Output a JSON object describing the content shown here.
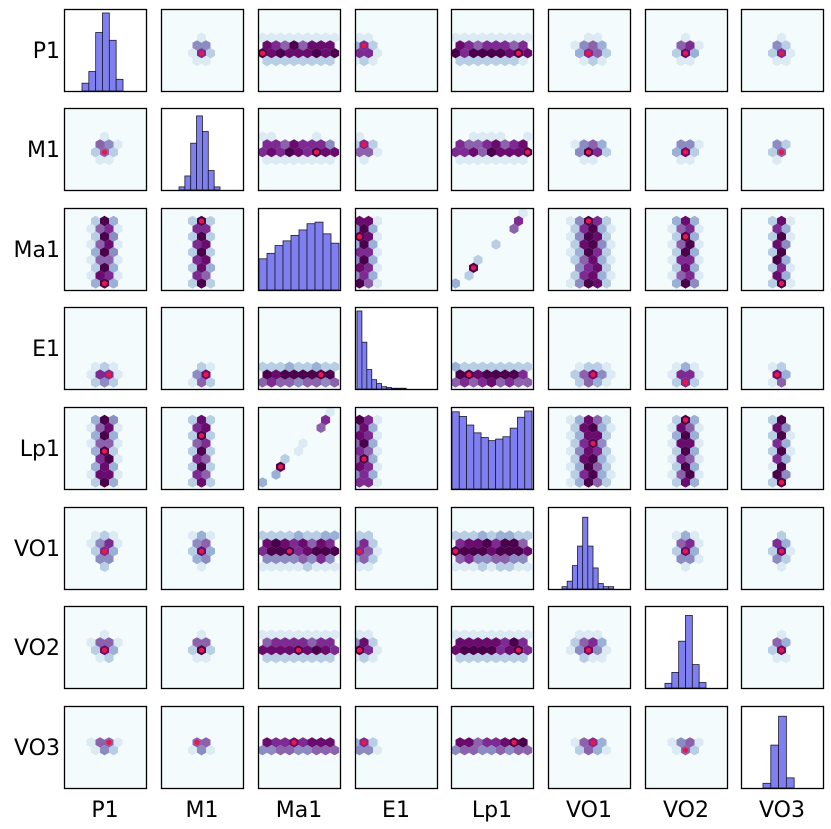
{
  "chart_data": {
    "type": "pairplot",
    "variables": [
      "P1",
      "M1",
      "Ma1",
      "E1",
      "Lp1",
      "VO1",
      "VO2",
      "VO3"
    ],
    "row_labels": [
      "P1",
      "M1",
      "Ma1",
      "E1",
      "Lp1",
      "VO1",
      "VO2",
      "VO3"
    ],
    "col_labels": [
      "P1",
      "M1",
      "Ma1",
      "E1",
      "Lp1",
      "VO1",
      "VO2",
      "VO3"
    ],
    "diagonal": "histogram",
    "off_diagonal": "hexbin",
    "histograms": {
      "P1": [
        0.1,
        0.25,
        0.75,
        1.0,
        0.65,
        0.15
      ],
      "M1": [
        0.04,
        0.18,
        0.6,
        0.95,
        0.75,
        0.25,
        0.04
      ],
      "Ma1": [
        0.4,
        0.47,
        0.57,
        0.63,
        0.7,
        0.77,
        0.85,
        0.87,
        0.72,
        0.6
      ],
      "E1": [
        1.0,
        0.6,
        0.25,
        0.12,
        0.07,
        0.03,
        0.02,
        0.01,
        0.01,
        0.01
      ],
      "Lp1": [
        0.99,
        0.93,
        0.82,
        0.72,
        0.66,
        0.62,
        0.64,
        0.67,
        0.78,
        0.92,
        1.0
      ],
      "VO1": [
        0.03,
        0.1,
        0.3,
        0.55,
        0.92,
        0.55,
        0.27,
        0.07,
        0.03,
        0.03
      ],
      "VO2": [
        0.06,
        0.2,
        0.6,
        0.93,
        0.3,
        0.07
      ],
      "VO3": [
        0.06,
        0.55,
        0.92,
        0.13
      ]
    },
    "colors": {
      "hist_fill": "#7f7ff0",
      "hist_edge": "#1a1a2e",
      "hex_colormap": [
        "#f4fbfd",
        "#dceaf3",
        "#b7cee4",
        "#9ab0d6",
        "#8c8cc2",
        "#8c62ad",
        "#7d2a92",
        "#6a0c6e",
        "#4a004b"
      ],
      "hex_peak": "#e8174a",
      "frame": "#000000"
    }
  }
}
